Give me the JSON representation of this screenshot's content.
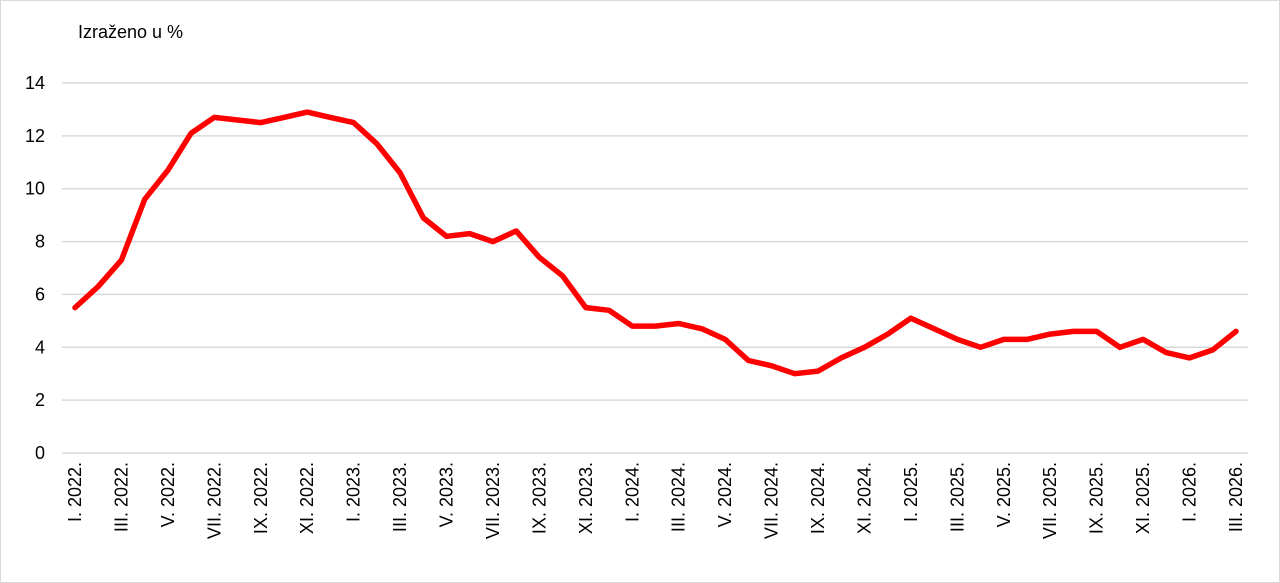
{
  "chart_data": {
    "type": "line",
    "title": "",
    "ylabel": "Izraženo u %",
    "xlabel": "",
    "ylim": [
      0,
      14
    ],
    "yticks": [
      0,
      2,
      4,
      6,
      8,
      10,
      12,
      14
    ],
    "grid": true,
    "line_color": "#ff0000",
    "grid_color": "#d9d9d9",
    "x": [
      "I. 2022.",
      "II. 2022.",
      "III. 2022.",
      "IV. 2022.",
      "V. 2022.",
      "VI. 2022.",
      "VII. 2022.",
      "VIII. 2022.",
      "IX. 2022.",
      "X. 2022.",
      "XI. 2022.",
      "XII. 2022.",
      "I. 2023.",
      "II. 2023.",
      "III. 2023.",
      "IV. 2023.",
      "V. 2023.",
      "VI. 2023.",
      "VII. 2023.",
      "VIII. 2023.",
      "IX. 2023.",
      "X. 2023.",
      "XI. 2023.",
      "XII. 2023.",
      "I. 2024.",
      "II. 2024.",
      "III. 2024.",
      "IV. 2024.",
      "V. 2024.",
      "VI. 2024.",
      "VII. 2024.",
      "VIII. 2024.",
      "IX. 2024.",
      "X. 2024.",
      "XI. 2024.",
      "XII. 2024.",
      "I. 2025.",
      "II. 2025.",
      "III. 2025.",
      "IV. 2025.",
      "V. 2025.",
      "VI. 2025.",
      "VII. 2025.",
      "VIII. 2025.",
      "IX. 2025.",
      "X. 2025.",
      "XI. 2025.",
      "XII. 2025.",
      "I. 2026.",
      "II. 2026.",
      "III. 2026."
    ],
    "tick_labels": [
      "I. 2022.",
      "III. 2022.",
      "V. 2022.",
      "VII. 2022.",
      "IX. 2022.",
      "XI. 2022.",
      "I. 2023.",
      "III. 2023.",
      "V. 2023.",
      "VII. 2023.",
      "IX. 2023.",
      "XI. 2023.",
      "I. 2024.",
      "III. 2024.",
      "V. 2024.",
      "VII. 2024.",
      "IX. 2024.",
      "XI. 2024.",
      "I. 2025.",
      "III. 2025.",
      "V. 2025.",
      "VII. 2025.",
      "IX. 2025.",
      "XI. 2025.",
      "I. 2026.",
      "III. 2026."
    ],
    "values": [
      5.5,
      6.3,
      7.3,
      9.6,
      10.7,
      12.1,
      12.7,
      12.6,
      12.5,
      12.7,
      12.9,
      12.7,
      12.5,
      11.7,
      10.6,
      8.9,
      8.2,
      8.3,
      8.0,
      8.4,
      7.4,
      6.7,
      5.5,
      5.4,
      4.8,
      4.8,
      4.9,
      4.7,
      4.3,
      3.5,
      3.3,
      3.0,
      3.1,
      3.6,
      4.0,
      4.5,
      5.1,
      4.7,
      4.3,
      4.0,
      4.3,
      4.3,
      4.5,
      4.6,
      4.6,
      4.0,
      4.3,
      3.8,
      3.6,
      3.9,
      4.6
    ]
  }
}
